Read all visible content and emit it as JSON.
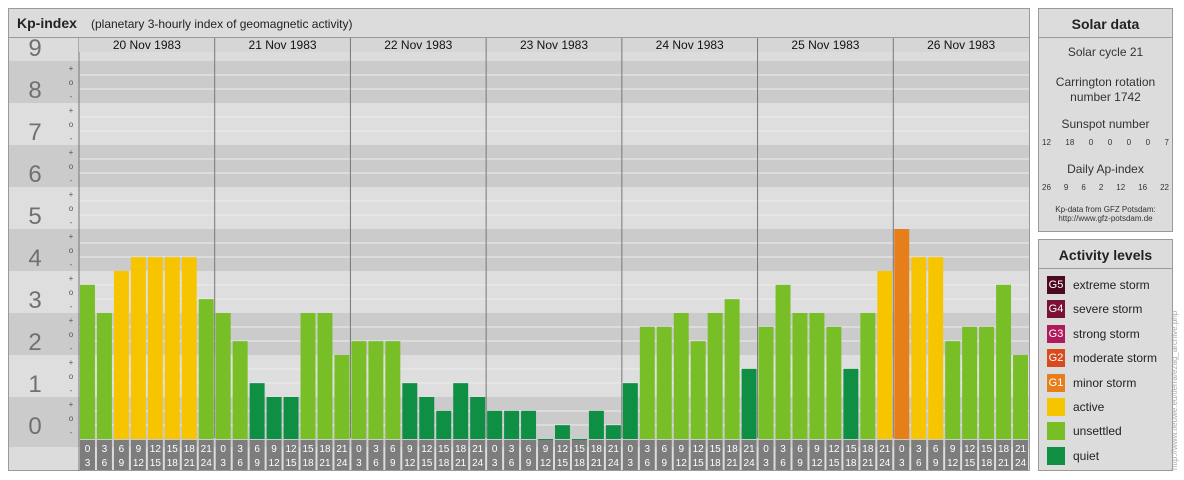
{
  "chart_title": "Kp-index",
  "chart_subtitle": "(planetary 3-hourly index of geomagnetic activity)",
  "chart_data": {
    "type": "bar",
    "title": "Kp-index",
    "subtitle": "(planetary 3-hourly index of geomagnetic activity)",
    "ylim": [
      0,
      9
    ],
    "y_ticks": [
      "0",
      "1",
      "2",
      "3",
      "4",
      "5",
      "6",
      "7",
      "8",
      "9"
    ],
    "thirds_marks": [
      "-",
      "o",
      "+"
    ],
    "days": [
      "20 Nov 1983",
      "21 Nov 1983",
      "22 Nov 1983",
      "23 Nov 1983",
      "24 Nov 1983",
      "25 Nov 1983",
      "26 Nov 1983"
    ],
    "interval_labels": [
      [
        "0",
        "3"
      ],
      [
        "3",
        "6"
      ],
      [
        "6",
        "9"
      ],
      [
        "9",
        "12"
      ],
      [
        "12",
        "15"
      ],
      [
        "15",
        "18"
      ],
      [
        "18",
        "21"
      ],
      [
        "21",
        "24"
      ]
    ],
    "values": [
      [
        3.67,
        3.0,
        4.0,
        4.33,
        4.33,
        4.33,
        4.33,
        3.33
      ],
      [
        3.0,
        2.33,
        1.33,
        1.0,
        1.0,
        3.0,
        3.0,
        2.0
      ],
      [
        2.33,
        2.33,
        2.33,
        1.33,
        1.0,
        0.67,
        1.33,
        1.0
      ],
      [
        0.67,
        0.67,
        0.67,
        0.0,
        0.33,
        0.0,
        0.67,
        0.33
      ],
      [
        1.33,
        2.67,
        2.67,
        3.0,
        2.33,
        3.0,
        3.33,
        1.67
      ],
      [
        2.67,
        3.67,
        3.0,
        3.0,
        2.67,
        1.67,
        3.0,
        4.0
      ],
      [
        5.0,
        4.33,
        4.33,
        2.33,
        2.67,
        2.67,
        3.67,
        2.0
      ]
    ],
    "level_colors": {
      "quiet": "#0f8f44",
      "unsettled": "#78bf27",
      "active": "#f7c500",
      "G1": "#e67e1a"
    }
  },
  "solar": {
    "title": "Solar data",
    "cycle": "Solar cycle 21",
    "carrington_line1": "Carrington rotation",
    "carrington_line2": "number 1742",
    "sunspot_title": "Sunspot number",
    "sunspot_values": [
      "12",
      "18",
      "0",
      "0",
      "0",
      "0",
      "7"
    ],
    "ap_title": "Daily Ap-index",
    "ap_values": [
      "26",
      "9",
      "6",
      "2",
      "12",
      "16",
      "22"
    ],
    "source_line1": "Kp-data from GFZ Potsdam:",
    "source_line2": "http://www.gfz-potsdam.de"
  },
  "legend": {
    "title": "Activity levels",
    "items": [
      {
        "badge": "G5",
        "label": "extreme storm",
        "color": "#4d0a1e"
      },
      {
        "badge": "G4",
        "label": "severe storm",
        "color": "#7a1236"
      },
      {
        "badge": "G3",
        "label": "strong storm",
        "color": "#b0195a"
      },
      {
        "badge": "G2",
        "label": "moderate storm",
        "color": "#d94a1c"
      },
      {
        "badge": "G1",
        "label": "minor storm",
        "color": "#e67e1a"
      },
      {
        "badge": "",
        "label": "active",
        "color": "#f7c500"
      },
      {
        "badge": "",
        "label": "unsettled",
        "color": "#78bf27"
      },
      {
        "badge": "",
        "label": "quiet",
        "color": "#0f8f44"
      }
    ]
  },
  "credit": "http://www.tieuwe.eu/tierra/ezag_archive.php"
}
